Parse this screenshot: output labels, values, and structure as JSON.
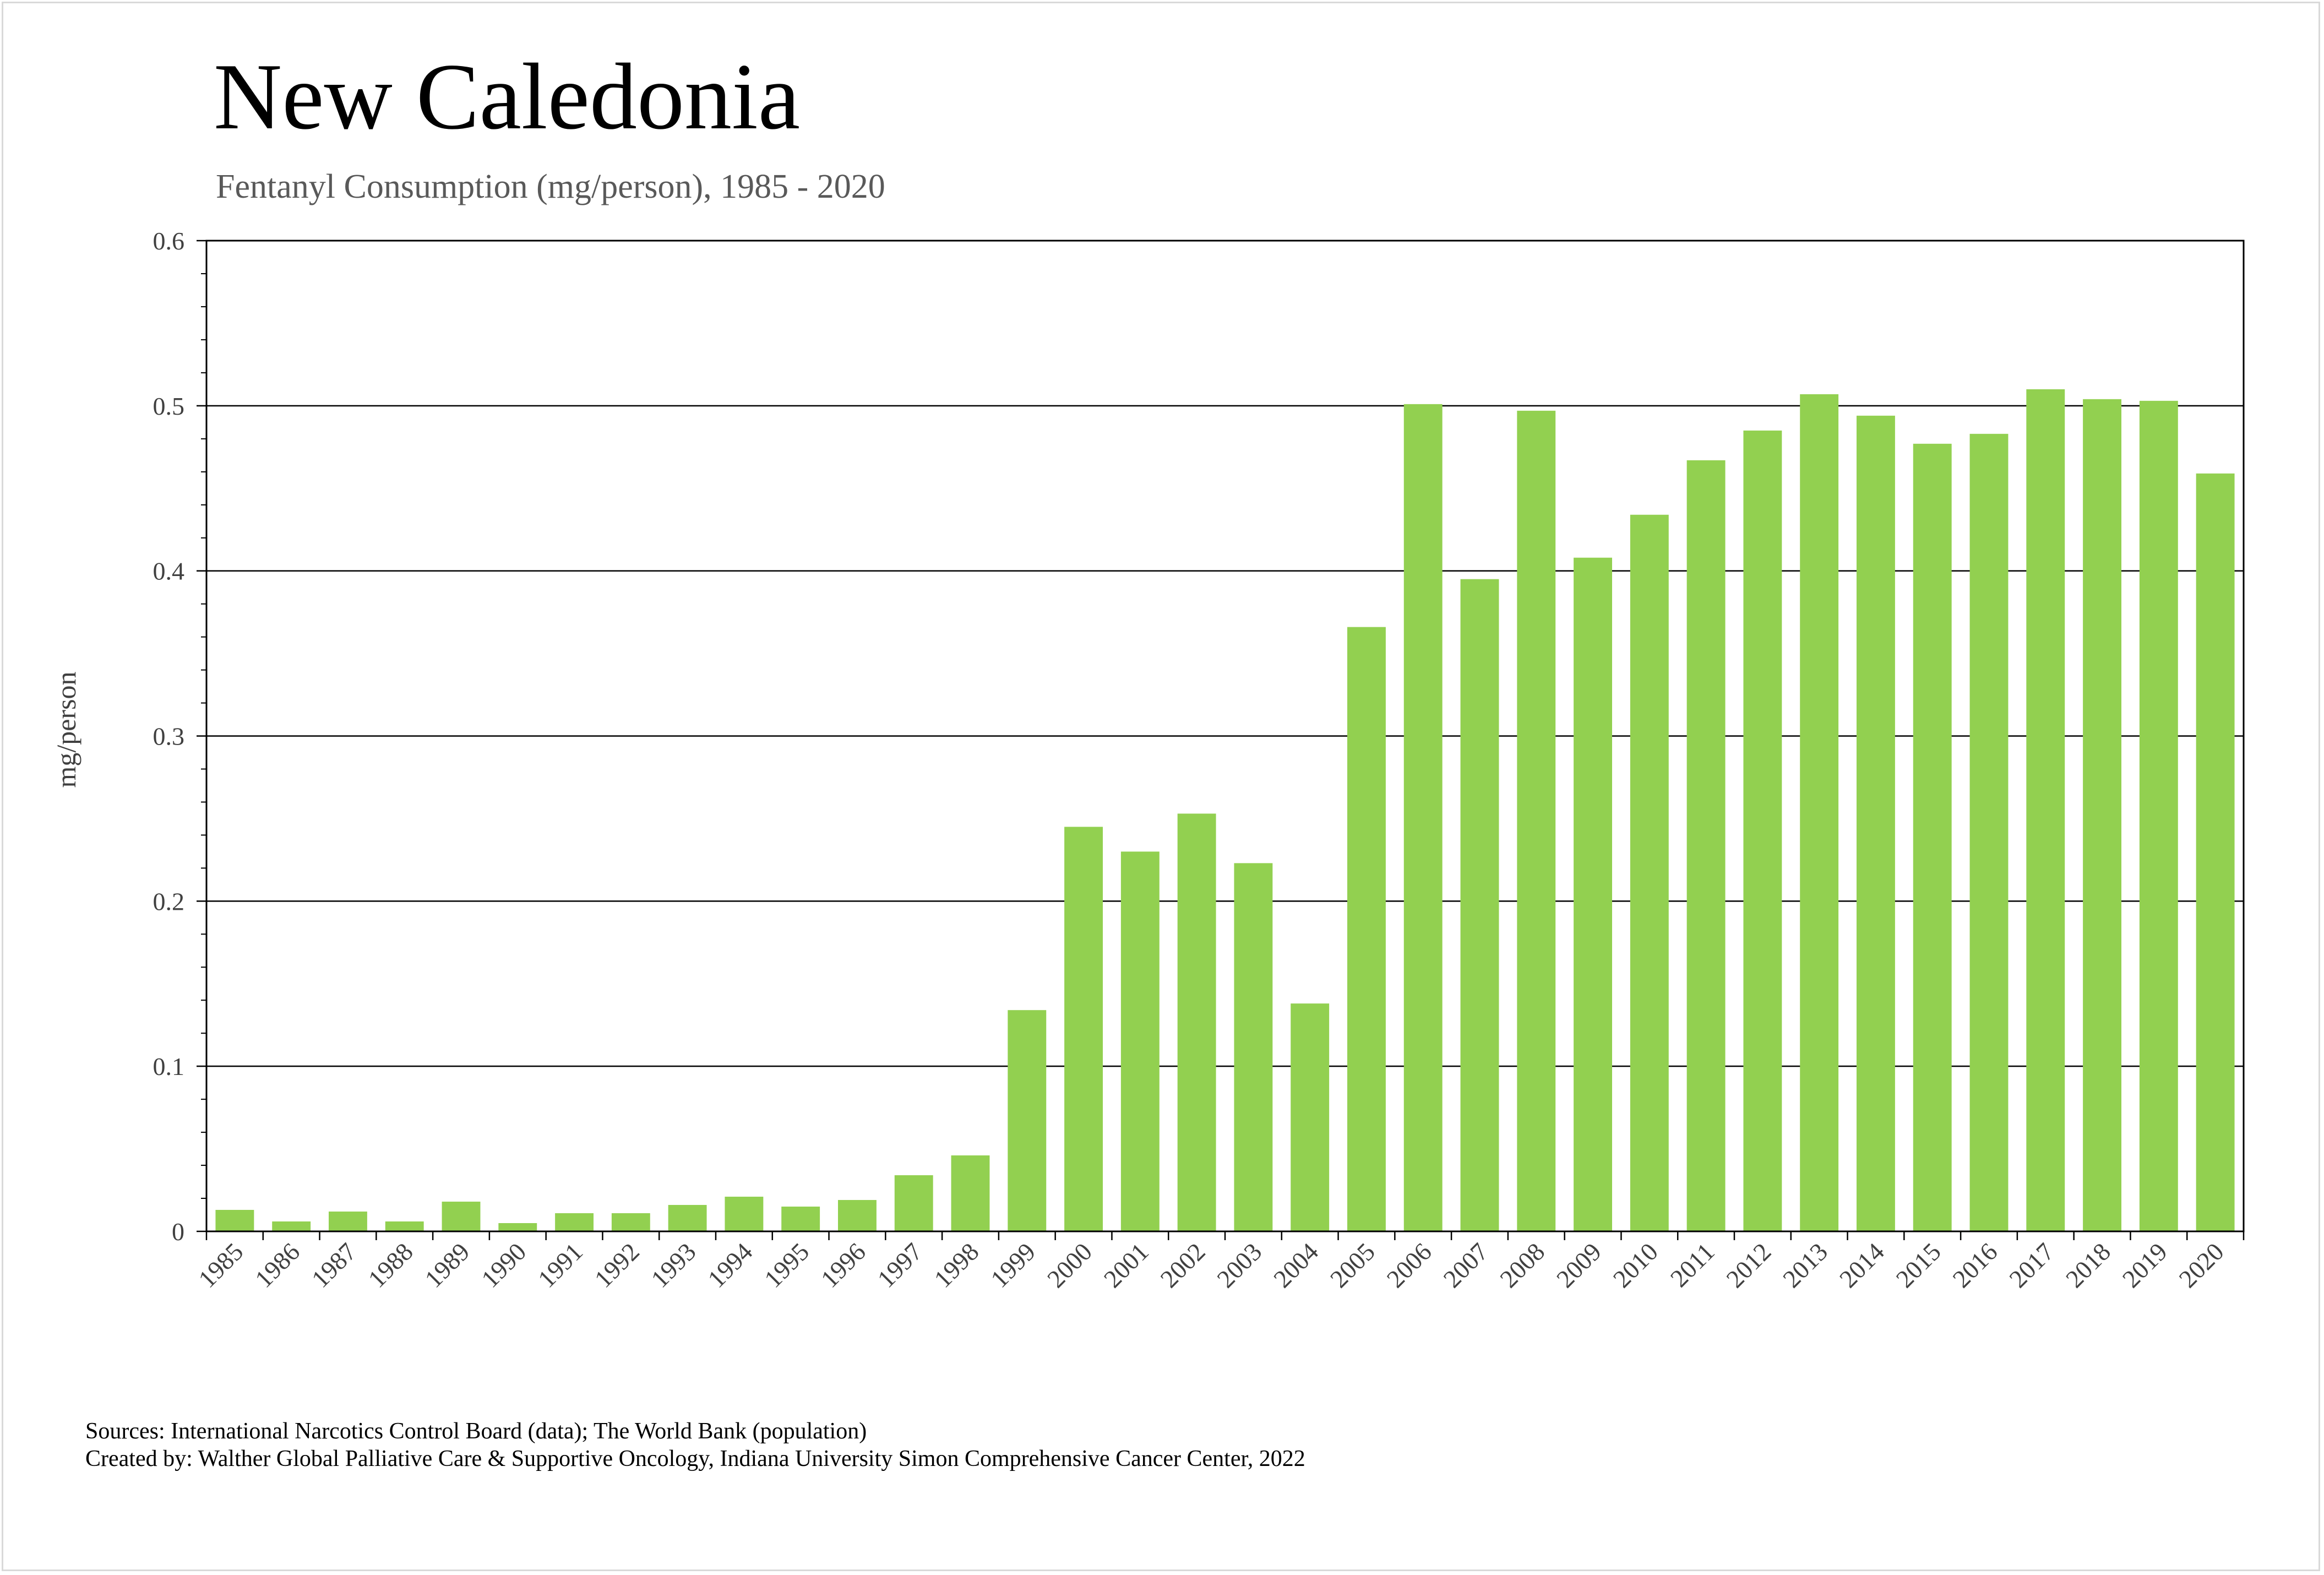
{
  "title": "New Caledonia",
  "subtitle": "Fentanyl Consumption (mg/person), 1985 - 2020",
  "footer": {
    "sources": "Sources: International Narcotics Control Board (data); The World Bank (population)",
    "created_by": "Created by: Walther Global Palliative Care & Supportive Oncology, Indiana University Simon Comprehensive Cancer Center, 2022"
  },
  "colors": {
    "bar": "#92d050",
    "grid": "#000000",
    "text": "#404040"
  },
  "chart_data": {
    "type": "bar",
    "title": "New Caledonia",
    "subtitle": "Fentanyl Consumption (mg/person), 1985 - 2020",
    "xlabel": "",
    "ylabel": "mg/person",
    "ylim": [
      0,
      0.6
    ],
    "yticks": [
      "0",
      "0.1",
      "0.2",
      "0.3",
      "0.4",
      "0.5",
      "0.6"
    ],
    "grid": "horizontal major",
    "legend": "none",
    "categories": [
      "1985",
      "1986",
      "1987",
      "1988",
      "1989",
      "1990",
      "1991",
      "1992",
      "1993",
      "1994",
      "1995",
      "1996",
      "1997",
      "1998",
      "1999",
      "2000",
      "2001",
      "2002",
      "2003",
      "2004",
      "2005",
      "2006",
      "2007",
      "2008",
      "2009",
      "2010",
      "2011",
      "2012",
      "2013",
      "2014",
      "2015",
      "2016",
      "2017",
      "2018",
      "2019",
      "2020"
    ],
    "values": [
      0.013,
      0.006,
      0.012,
      0.006,
      0.018,
      0.005,
      0.011,
      0.011,
      0.016,
      0.021,
      0.015,
      0.019,
      0.034,
      0.046,
      0.134,
      0.245,
      0.23,
      0.253,
      0.223,
      0.138,
      0.366,
      0.501,
      0.395,
      0.497,
      0.408,
      0.434,
      0.467,
      0.485,
      0.507,
      0.494,
      0.477,
      0.483,
      0.51,
      0.504,
      0.503,
      0.459
    ]
  }
}
